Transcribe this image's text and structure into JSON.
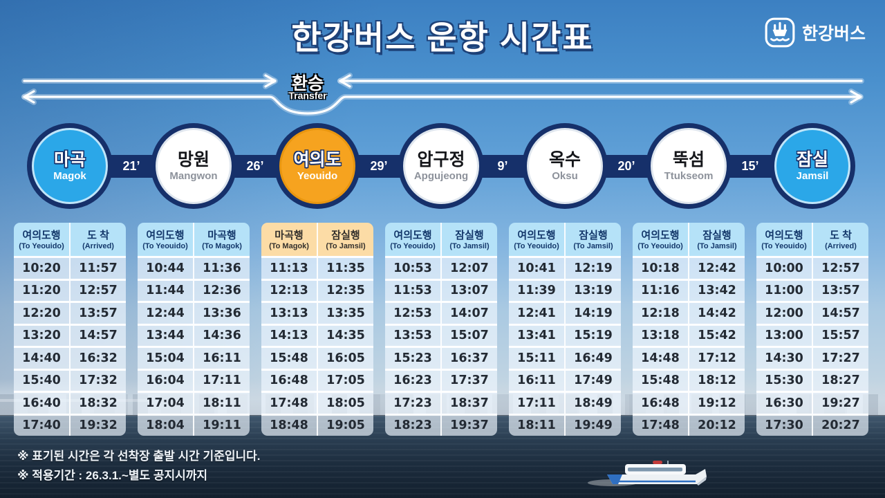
{
  "title": "한강버스 운항 시간표",
  "logo": {
    "text": "한강버스",
    "icon": "boat-in-rounded-square"
  },
  "transfer": {
    "label_ko": "환승",
    "label_en": "Transfer"
  },
  "route": {
    "stations": [
      {
        "name_ko": "마곡",
        "name_en": "Magok",
        "style": "blue"
      },
      {
        "name_ko": "망원",
        "name_en": "Mangwon",
        "style": "white"
      },
      {
        "name_ko": "여의도",
        "name_en": "Yeouido",
        "style": "orange"
      },
      {
        "name_ko": "압구정",
        "name_en": "Apgujeong",
        "style": "white"
      },
      {
        "name_ko": "옥수",
        "name_en": "Oksu",
        "style": "white"
      },
      {
        "name_ko": "뚝섬",
        "name_en": "Ttukseom",
        "style": "white"
      },
      {
        "name_ko": "잠실",
        "name_en": "Jamsil",
        "style": "blue"
      }
    ],
    "legs": [
      "21’",
      "26’",
      "29’",
      "9’",
      "20’",
      "15’"
    ]
  },
  "tables": [
    {
      "station": "Magok",
      "accent": "blue",
      "columns": [
        {
          "ko": "여의도행",
          "en": "(To Yeouido)"
        },
        {
          "ko": "도 착",
          "en": "(Arrived)"
        }
      ],
      "rows": [
        [
          "10:20",
          "11:57"
        ],
        [
          "11:20",
          "12:57"
        ],
        [
          "12:20",
          "13:57"
        ],
        [
          "13:20",
          "14:57"
        ],
        [
          "14:40",
          "16:32"
        ],
        [
          "15:40",
          "17:32"
        ],
        [
          "16:40",
          "18:32"
        ],
        [
          "17:40",
          "19:32"
        ]
      ]
    },
    {
      "station": "Mangwon",
      "accent": "blue",
      "columns": [
        {
          "ko": "여의도행",
          "en": "(To Yeouido)"
        },
        {
          "ko": "마곡행",
          "en": "(To Magok)"
        }
      ],
      "rows": [
        [
          "10:44",
          "11:36"
        ],
        [
          "11:44",
          "12:36"
        ],
        [
          "12:44",
          "13:36"
        ],
        [
          "13:44",
          "14:36"
        ],
        [
          "15:04",
          "16:11"
        ],
        [
          "16:04",
          "17:11"
        ],
        [
          "17:04",
          "18:11"
        ],
        [
          "18:04",
          "19:11"
        ]
      ]
    },
    {
      "station": "Yeouido",
      "accent": "orange",
      "columns": [
        {
          "ko": "마곡행",
          "en": "(To Magok)"
        },
        {
          "ko": "잠실행",
          "en": "(To Jamsil)"
        }
      ],
      "rows": [
        [
          "11:13",
          "11:35"
        ],
        [
          "12:13",
          "12:35"
        ],
        [
          "13:13",
          "13:35"
        ],
        [
          "14:13",
          "14:35"
        ],
        [
          "15:48",
          "16:05"
        ],
        [
          "16:48",
          "17:05"
        ],
        [
          "17:48",
          "18:05"
        ],
        [
          "18:48",
          "19:05"
        ]
      ]
    },
    {
      "station": "Apgujeong",
      "accent": "blue",
      "columns": [
        {
          "ko": "여의도행",
          "en": "(To Yeouido)"
        },
        {
          "ko": "잠실행",
          "en": "(To Jamsil)"
        }
      ],
      "rows": [
        [
          "10:53",
          "12:07"
        ],
        [
          "11:53",
          "13:07"
        ],
        [
          "12:53",
          "14:07"
        ],
        [
          "13:53",
          "15:07"
        ],
        [
          "15:23",
          "16:37"
        ],
        [
          "16:23",
          "17:37"
        ],
        [
          "17:23",
          "18:37"
        ],
        [
          "18:23",
          "19:37"
        ]
      ]
    },
    {
      "station": "Oksu",
      "accent": "blue",
      "columns": [
        {
          "ko": "여의도행",
          "en": "(To Yeouido)"
        },
        {
          "ko": "잠실행",
          "en": "(To Jamsil)"
        }
      ],
      "rows": [
        [
          "10:41",
          "12:19"
        ],
        [
          "11:39",
          "13:19"
        ],
        [
          "12:41",
          "14:19"
        ],
        [
          "13:41",
          "15:19"
        ],
        [
          "15:11",
          "16:49"
        ],
        [
          "16:11",
          "17:49"
        ],
        [
          "17:11",
          "18:49"
        ],
        [
          "18:11",
          "19:49"
        ]
      ]
    },
    {
      "station": "Ttukseom",
      "accent": "blue",
      "columns": [
        {
          "ko": "여의도행",
          "en": "(To Yeouido)"
        },
        {
          "ko": "잠실행",
          "en": "(To Jamsil)"
        }
      ],
      "rows": [
        [
          "10:18",
          "12:42"
        ],
        [
          "11:16",
          "13:42"
        ],
        [
          "12:18",
          "14:42"
        ],
        [
          "13:18",
          "15:42"
        ],
        [
          "14:48",
          "17:12"
        ],
        [
          "15:48",
          "18:12"
        ],
        [
          "16:48",
          "19:12"
        ],
        [
          "17:48",
          "20:12"
        ]
      ]
    },
    {
      "station": "Jamsil",
      "accent": "blue",
      "columns": [
        {
          "ko": "여의도행",
          "en": "(To Yeouido)"
        },
        {
          "ko": "도 착",
          "en": "(Arrived)"
        }
      ],
      "rows": [
        [
          "10:00",
          "12:57"
        ],
        [
          "11:00",
          "13:57"
        ],
        [
          "12:00",
          "14:57"
        ],
        [
          "13:00",
          "15:57"
        ],
        [
          "14:30",
          "17:27"
        ],
        [
          "15:30",
          "18:27"
        ],
        [
          "16:30",
          "19:27"
        ],
        [
          "17:30",
          "20:27"
        ]
      ]
    }
  ],
  "notes": [
    "※ 표기된 시간은 각 선착장 출발 시간 기준입니다.",
    "※ 적용기간 : 26.3.1.~별도 공지시까지"
  ],
  "colors": {
    "navy": "#16306a",
    "station_blue": "#2ba7e8",
    "station_orange": "#f6a31f",
    "header_blue": "#b5e2f8",
    "header_orange": "#fcdca6",
    "sky_top": "#3c80c2",
    "water_dark": "#13202e"
  }
}
